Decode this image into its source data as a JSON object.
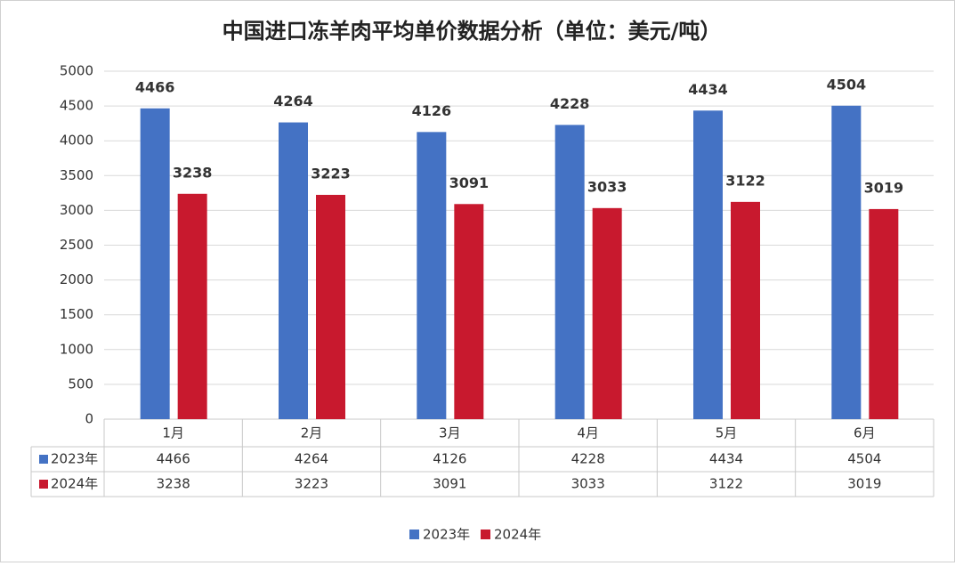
{
  "chart_data": {
    "type": "bar",
    "title": "中国进口冻羊肉平均单价数据分析（单位：美元/吨）",
    "categories": [
      "1月",
      "2月",
      "3月",
      "4月",
      "5月",
      "6月"
    ],
    "series": [
      {
        "name": "2023年",
        "color": "#4472c4",
        "values": [
          4466,
          4264,
          4126,
          4228,
          4434,
          4504
        ]
      },
      {
        "name": "2024年",
        "color": "#c8192e",
        "values": [
          3238,
          3223,
          3091,
          3033,
          3122,
          3019
        ]
      }
    ],
    "ylim": [
      0,
      5000
    ],
    "yticks": [
      0,
      500,
      1000,
      1500,
      2000,
      2500,
      3000,
      3500,
      4000,
      4500,
      5000
    ],
    "grid": true
  }
}
